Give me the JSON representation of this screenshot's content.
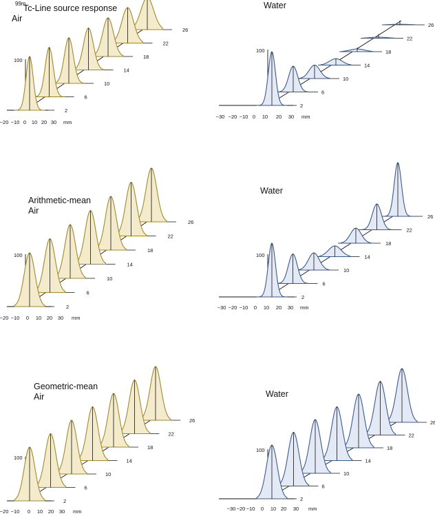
{
  "figure": {
    "title_superscript": "99m",
    "title_text": "Tc-Line source response",
    "panels": [
      {
        "id": "r1-air",
        "title": [
          "Air"
        ],
        "medium": "air",
        "fill": "#f3ebcb",
        "stroke": "#a08a2c"
      },
      {
        "id": "r1-water",
        "title": [
          "Water"
        ],
        "medium": "water",
        "fill": "#e4eaf5",
        "stroke": "#3a5a8c"
      },
      {
        "id": "r2-air",
        "title": [
          "Arithmetic-mean",
          "Air"
        ],
        "medium": "air",
        "fill": "#f3ebcb",
        "stroke": "#a08a2c"
      },
      {
        "id": "r2-water",
        "title": [
          "Water"
        ],
        "medium": "water",
        "fill": "#e4eaf5",
        "stroke": "#3a5a8c"
      },
      {
        "id": "r3-air",
        "title": [
          "Geometric-mean",
          "Air"
        ],
        "medium": "air",
        "fill": "#f3ebcb",
        "stroke": "#a08a2c"
      },
      {
        "id": "r3-water",
        "title": [
          "Water"
        ],
        "medium": "water",
        "fill": "#e4eaf5",
        "stroke": "#3a5a8c"
      }
    ]
  },
  "chart_data": [
    {
      "type": "area",
      "title": "Air",
      "x_ticks_air": [
        "−20",
        "−10",
        "0",
        "10",
        "20",
        "30",
        "mm"
      ],
      "x_unit": "mm",
      "y_tick": "100",
      "depths": [
        "2",
        "6",
        "10",
        "14",
        "18",
        "22",
        "26"
      ],
      "peaks": [
        100,
        92,
        85,
        78,
        72,
        66,
        60
      ],
      "fwhm_mm": [
        8,
        9,
        10,
        11,
        12,
        13,
        14
      ],
      "xlim": [
        -20,
        30
      ]
    },
    {
      "type": "area",
      "title": "Water",
      "x_ticks_water": [
        "−30",
        "−20",
        "−10",
        "0",
        "10",
        "20",
        "30",
        "mm"
      ],
      "x_unit": "mm",
      "y_tick": "100",
      "depths": [
        "2",
        "6",
        "10",
        "14",
        "18",
        "22",
        "26"
      ],
      "peaks": [
        100,
        48,
        25,
        12,
        5,
        2,
        1
      ],
      "fwhm_mm": [
        8,
        10,
        12,
        14,
        16,
        18,
        20
      ],
      "xlim": [
        -30,
        30
      ]
    },
    {
      "type": "area",
      "title": "Arithmetic-mean Air",
      "x_ticks_air": [
        "−20",
        "−10",
        "0",
        "10",
        "20",
        "30",
        "mm"
      ],
      "x_unit": "mm",
      "y_tick": "100",
      "depths": [
        "2",
        "6",
        "10",
        "14",
        "18",
        "22",
        "26"
      ],
      "peaks": [
        100,
        100,
        100,
        100,
        100,
        100,
        100
      ],
      "fwhm_mm": [
        12,
        12,
        12,
        12,
        12,
        12,
        12
      ],
      "xlim": [
        -20,
        30
      ]
    },
    {
      "type": "area",
      "title": "Water",
      "x_ticks_water": [
        "−30",
        "−20",
        "−10",
        "0",
        "10",
        "20",
        "30",
        "mm"
      ],
      "x_unit": "mm",
      "y_tick": "100",
      "depths": [
        "2",
        "6",
        "10",
        "14",
        "18",
        "22",
        "26"
      ],
      "peaks": [
        100,
        55,
        32,
        20,
        28,
        48,
        100
      ],
      "fwhm_mm": [
        8,
        10,
        12,
        14,
        12,
        10,
        8
      ],
      "xlim": [
        -30,
        30
      ]
    },
    {
      "type": "area",
      "title": "Geometric-mean Air",
      "x_ticks_air": [
        "−20",
        "−10",
        "0",
        "10",
        "20",
        "30",
        "mm"
      ],
      "x_unit": "mm",
      "y_tick": "100",
      "depths": [
        "2",
        "6",
        "10",
        "14",
        "18",
        "22",
        "26"
      ],
      "peaks": [
        100,
        100,
        100,
        100,
        100,
        100,
        100
      ],
      "fwhm_mm": [
        12,
        12,
        12,
        12,
        12,
        12,
        12
      ],
      "xlim": [
        -20,
        30
      ]
    },
    {
      "type": "area",
      "title": "Water",
      "x_ticks_water": [
        "−30",
        "−20",
        "−10",
        "0",
        "10",
        "20",
        "30",
        "mm"
      ],
      "x_unit": "mm",
      "y_tick": "100",
      "depths": [
        "2",
        "6",
        "10",
        "14",
        "18",
        "22",
        "26"
      ],
      "peaks": [
        100,
        100,
        100,
        100,
        100,
        100,
        100
      ],
      "fwhm_mm": [
        12,
        12,
        12,
        12,
        12,
        12,
        12
      ],
      "xlim": [
        -30,
        30
      ]
    }
  ]
}
